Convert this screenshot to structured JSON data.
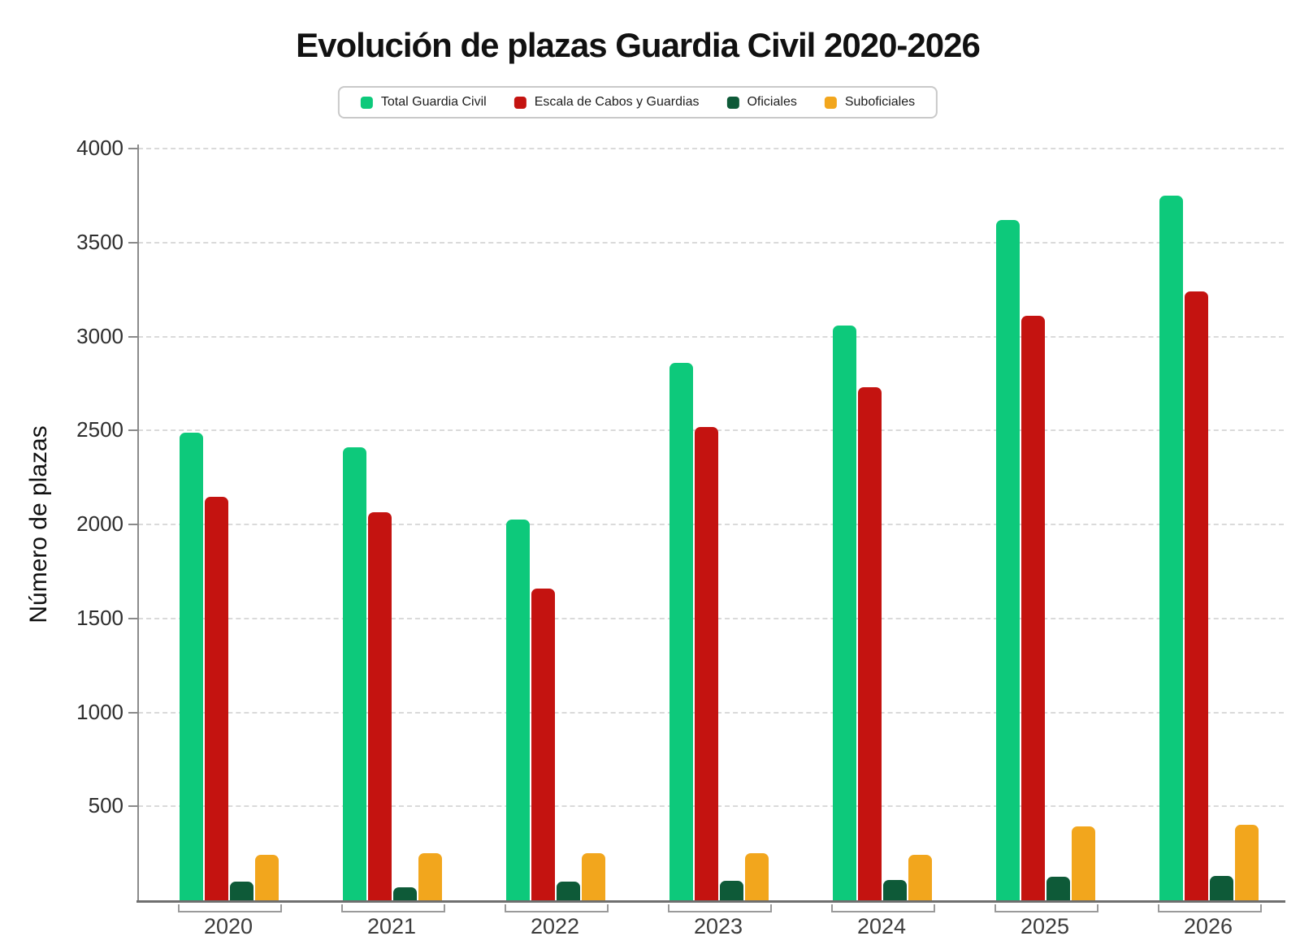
{
  "chart_data": {
    "type": "bar",
    "title": "Evolución de plazas Guardia Civil 2020-2026",
    "xlabel": "",
    "ylabel": "Número de plazas",
    "categories": [
      "2020",
      "2021",
      "2022",
      "2023",
      "2024",
      "2025",
      "2026"
    ],
    "series": [
      {
        "name": "Total Guardia Civil",
        "color": "#0dc97b",
        "values": [
          2490,
          2410,
          2025,
          2860,
          3060,
          3620,
          3750
        ]
      },
      {
        "name": "Escala de Cabos y Guardias",
        "color": "#c41310",
        "values": [
          2145,
          2065,
          1660,
          2520,
          2730,
          3110,
          3240
        ]
      },
      {
        "name": "Oficiales",
        "color": "#0e5a38",
        "values": [
          100,
          70,
          100,
          105,
          110,
          125,
          130
        ]
      },
      {
        "name": "Suboficiales",
        "color": "#f2a61d",
        "values": [
          240,
          250,
          250,
          250,
          240,
          395,
          400
        ]
      }
    ],
    "ylim": [
      0,
      4000
    ],
    "ytick_step": 500,
    "ytick_labels": [
      "500",
      "1000",
      "1500",
      "2000",
      "2500",
      "3000",
      "3500",
      "4000"
    ],
    "grid": "horizontal-dashed",
    "legend_position": "top-center",
    "axis_color": "#8a8a8a",
    "gridline_color": "#dadada"
  }
}
